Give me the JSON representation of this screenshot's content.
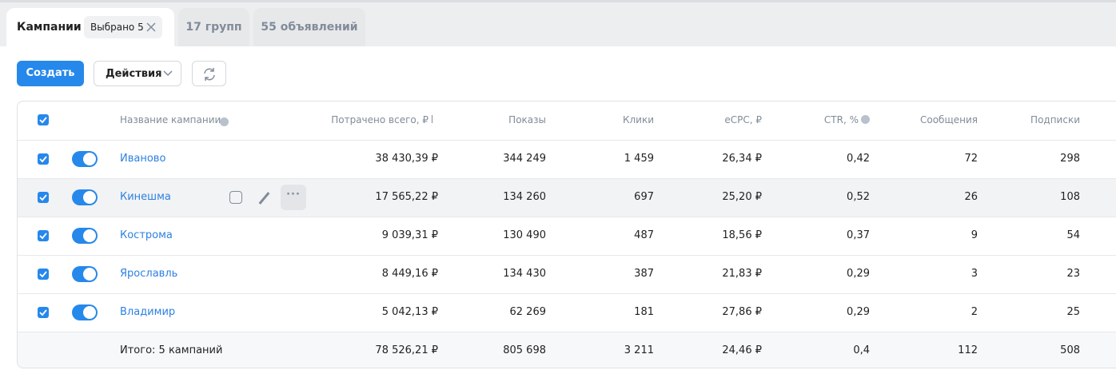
{
  "tabs": [
    {
      "label": "Кампании",
      "badge": "Выбрано 5"
    },
    {
      "label": "17 групп"
    },
    {
      "label": "55 объявлений"
    }
  ],
  "toolbar": {
    "create": "Создать",
    "actions": "Действия"
  },
  "table": {
    "columns": [
      "Название кампании",
      "Потрачено всего, ₽",
      "Показы",
      "Клики",
      "eCPC, ₽",
      "CTR, %",
      "Сообщения",
      "Подписки"
    ],
    "rows": [
      [
        "Иваново",
        "38 430,39 ₽",
        "344 249",
        "1 459",
        "26,34 ₽",
        "0,42",
        "72",
        "298"
      ],
      [
        "Кинешма",
        "17 565,22 ₽",
        "134 260",
        "697",
        "25,20 ₽",
        "0,52",
        "26",
        "108"
      ],
      [
        "Кострома",
        "9 039,31 ₽",
        "130 490",
        "487",
        "18,56 ₽",
        "0,37",
        "9",
        "54"
      ],
      [
        "Ярославль",
        "8 449,16 ₽",
        "134 430",
        "387",
        "21,83 ₽",
        "0,29",
        "3",
        "23"
      ],
      [
        "Владимир",
        "5 042,13 ₽",
        "62 269",
        "181",
        "27,86 ₽",
        "0,29",
        "2",
        "25"
      ]
    ],
    "total": [
      "Итого: 5 кампаний",
      "78 526,21 ₽",
      "805 698",
      "3 211",
      "24,46 ₽",
      "0,4",
      "112",
      "508"
    ]
  }
}
